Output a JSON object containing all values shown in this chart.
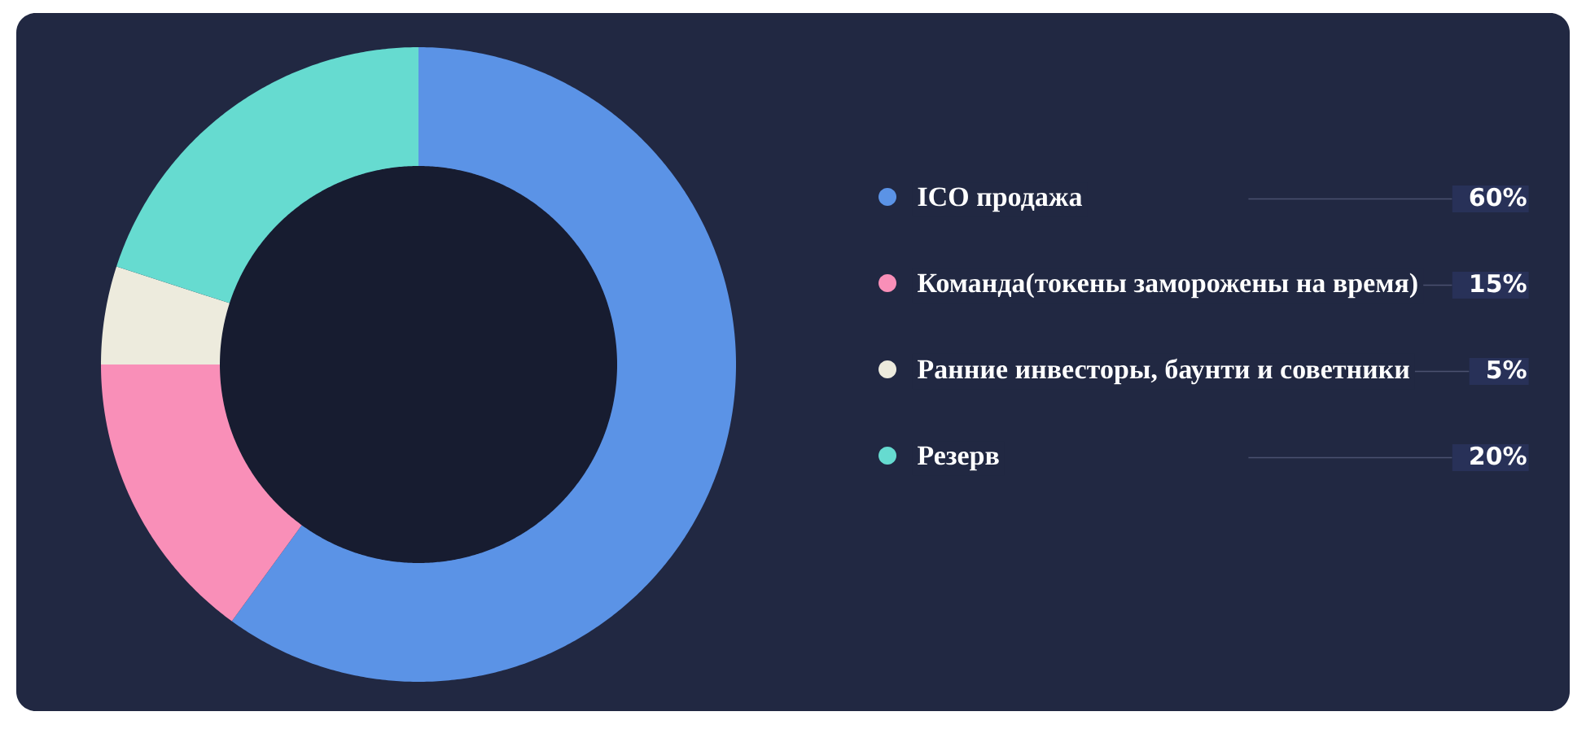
{
  "chart_data": {
    "type": "donut",
    "categories": [
      "ICO продажа",
      "Команда(токены заморожены на время)",
      "Ранние инвесторы, баунти и советники",
      "Резерв"
    ],
    "values": [
      60,
      15,
      5,
      20
    ],
    "colors": [
      "#5b93e6",
      "#f98fb8",
      "#edebdd",
      "#66dbd0"
    ],
    "value_labels": [
      "60%",
      "15%",
      "5%",
      "20%"
    ],
    "legend": "right"
  }
}
